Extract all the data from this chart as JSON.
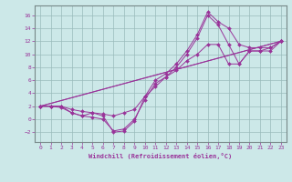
{
  "xlabel": "Windchill (Refroidissement éolien,°C)",
  "xlim": [
    -0.5,
    23.5
  ],
  "ylim": [
    -3.5,
    17.5
  ],
  "xticks": [
    0,
    1,
    2,
    3,
    4,
    5,
    6,
    7,
    8,
    9,
    10,
    11,
    12,
    13,
    14,
    15,
    16,
    17,
    18,
    19,
    20,
    21,
    22,
    23
  ],
  "yticks": [
    -2,
    0,
    2,
    4,
    6,
    8,
    10,
    12,
    14,
    16
  ],
  "background_color": "#cce8e8",
  "line_color": "#993399",
  "grid_color": "#99bbbb",
  "line1_x": [
    0,
    1,
    2,
    3,
    4,
    5,
    6,
    7,
    8,
    9,
    10,
    11,
    12,
    13,
    14,
    15,
    16,
    17,
    18,
    19,
    20,
    21,
    22,
    23
  ],
  "line1_y": [
    2,
    2,
    2,
    1,
    0.5,
    1,
    0.5,
    -2,
    -1.8,
    -0.3,
    3.5,
    6,
    7,
    8.5,
    10.5,
    13,
    16.5,
    15,
    14,
    11.5,
    11,
    11,
    11,
    12
  ],
  "line2_x": [
    0,
    1,
    2,
    3,
    4,
    5,
    6,
    7,
    8,
    9,
    10,
    11,
    12,
    13,
    14,
    15,
    16,
    17,
    18,
    19,
    20,
    21,
    22,
    23
  ],
  "line2_y": [
    2,
    2,
    1.8,
    1,
    0.5,
    0.3,
    0,
    -1.8,
    -1.5,
    0,
    3,
    5.5,
    6.5,
    8,
    10,
    12.5,
    16,
    14.5,
    11.5,
    8.5,
    10.5,
    10.5,
    10.5,
    12
  ],
  "line3_x": [
    0,
    1,
    2,
    3,
    4,
    5,
    6,
    7,
    8,
    9,
    10,
    11,
    12,
    13,
    14,
    15,
    16,
    17,
    18,
    19,
    20,
    21,
    22,
    23
  ],
  "line3_y": [
    2,
    2,
    2,
    1.5,
    1.2,
    1.0,
    0.8,
    0.5,
    1.0,
    1.5,
    3.5,
    5.0,
    6.5,
    7.5,
    9.0,
    10.0,
    11.5,
    11.5,
    8.5,
    8.5,
    10.5,
    10.5,
    11.0,
    12
  ],
  "line4_x": [
    0,
    23
  ],
  "line4_y": [
    2,
    12
  ],
  "line5_x": [
    0,
    23
  ],
  "line5_y": [
    2,
    12
  ]
}
